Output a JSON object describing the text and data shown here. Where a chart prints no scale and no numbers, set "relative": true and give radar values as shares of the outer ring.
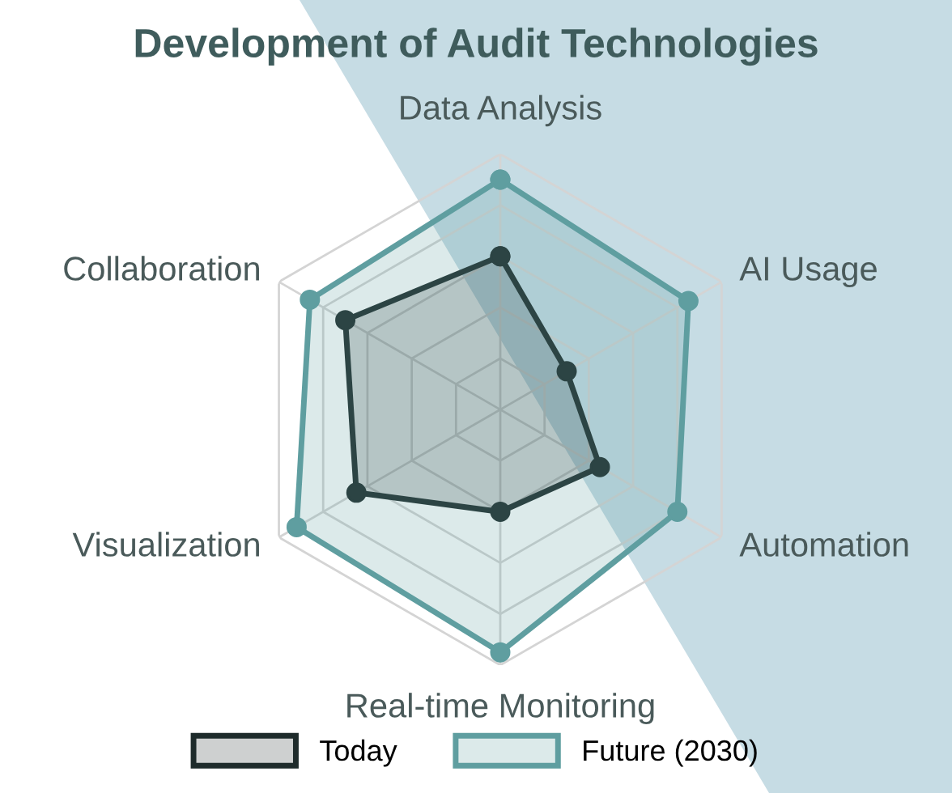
{
  "chart_data": {
    "type": "radar",
    "title": "Development of Audit Technologies",
    "categories": [
      "Data Analysis",
      "AI Usage",
      "Automation",
      "Real-time Monitoring",
      "Visualization",
      "Collaboration"
    ],
    "relative": true,
    "grid": true,
    "legend": "bottom",
    "marker": "circle",
    "series": [
      {
        "name": "Today",
        "color": "#1e2b2b",
        "values": [
          0.6,
          0.3,
          0.45,
          0.4,
          0.65,
          0.7
        ]
      },
      {
        "name": "Future (2030)",
        "color": "#5f9ea0",
        "values": [
          0.9,
          0.85,
          0.8,
          0.95,
          0.92,
          0.86
        ]
      }
    ]
  }
}
